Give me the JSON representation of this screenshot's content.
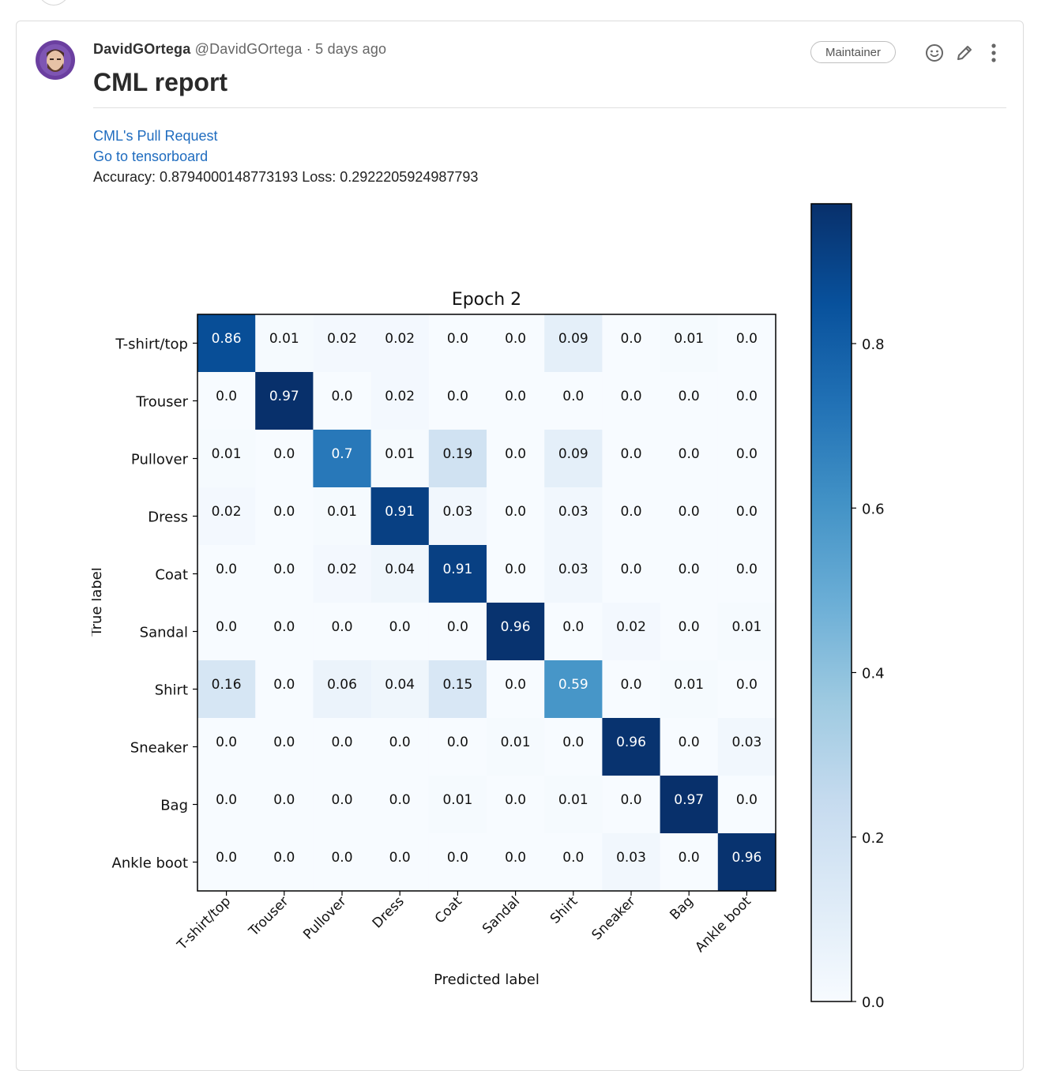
{
  "note": {
    "author_name": "DavidGOrtega",
    "author_handle": "@DavidGOrtega",
    "separator": "·",
    "time_ago": "5 days ago",
    "role_badge": "Maintainer",
    "title": "CML report",
    "links": [
      "CML's Pull Request",
      "Go to tensorboard"
    ],
    "metrics_text": "Accuracy: 0.8794000148773193 Loss: 0.2922205924987793"
  },
  "actions": {
    "emoji_icon": "smiley-face-icon",
    "edit_icon": "pencil-icon",
    "more_icon": "vertical-ellipsis-icon"
  },
  "chart_data": {
    "type": "heatmap",
    "title": "Epoch 2",
    "xlabel": "Predicted label",
    "ylabel": "True label",
    "x_categories": [
      "T-shirt/top",
      "Trouser",
      "Pullover",
      "Dress",
      "Coat",
      "Sandal",
      "Shirt",
      "Sneaker",
      "Bag",
      "Ankle boot"
    ],
    "y_categories": [
      "T-shirt/top",
      "Trouser",
      "Pullover",
      "Dress",
      "Coat",
      "Sandal",
      "Shirt",
      "Sneaker",
      "Bag",
      "Ankle boot"
    ],
    "values": [
      [
        0.86,
        0.01,
        0.02,
        0.02,
        0.0,
        0.0,
        0.09,
        0.0,
        0.01,
        0.0
      ],
      [
        0.0,
        0.97,
        0.0,
        0.02,
        0.0,
        0.0,
        0.0,
        0.0,
        0.0,
        0.0
      ],
      [
        0.01,
        0.0,
        0.7,
        0.01,
        0.19,
        0.0,
        0.09,
        0.0,
        0.0,
        0.0
      ],
      [
        0.02,
        0.0,
        0.01,
        0.91,
        0.03,
        0.0,
        0.03,
        0.0,
        0.0,
        0.0
      ],
      [
        0.0,
        0.0,
        0.02,
        0.04,
        0.91,
        0.0,
        0.03,
        0.0,
        0.0,
        0.0
      ],
      [
        0.0,
        0.0,
        0.0,
        0.0,
        0.0,
        0.96,
        0.0,
        0.02,
        0.0,
        0.01
      ],
      [
        0.16,
        0.0,
        0.06,
        0.04,
        0.15,
        0.0,
        0.59,
        0.0,
        0.01,
        0.0
      ],
      [
        0.0,
        0.0,
        0.0,
        0.0,
        0.0,
        0.01,
        0.0,
        0.96,
        0.0,
        0.03
      ],
      [
        0.0,
        0.0,
        0.0,
        0.0,
        0.01,
        0.0,
        0.01,
        0.0,
        0.97,
        0.0
      ],
      [
        0.0,
        0.0,
        0.0,
        0.0,
        0.0,
        0.0,
        0.0,
        0.03,
        0.0,
        0.96
      ]
    ],
    "colormap": "Blues",
    "color_range": [
      0.0,
      0.97
    ],
    "colorbar_ticks": [
      0.0,
      0.2,
      0.4,
      0.6,
      0.8
    ],
    "colorbar_tick_labels": [
      "0.0",
      "0.2",
      "0.4",
      "0.6",
      "0.8"
    ],
    "grid": false
  }
}
